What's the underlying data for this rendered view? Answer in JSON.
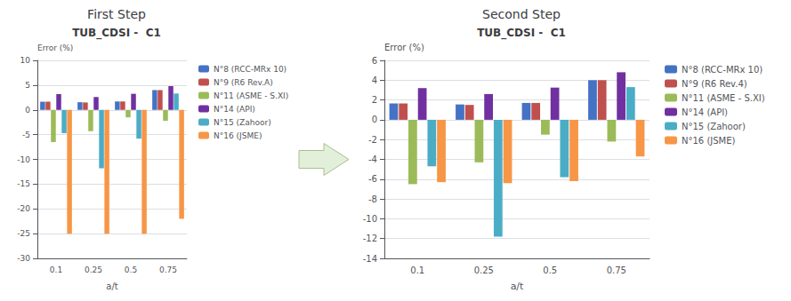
{
  "chart_data": [
    {
      "type": "bar",
      "title": "First Step",
      "annotation": "TUB_CDSI -  C1",
      "ylabel": "Error (%)",
      "xlabel": "a/t",
      "categories": [
        "0.1",
        "0.25",
        "0.5",
        "0.75"
      ],
      "series": [
        {
          "name": "N°8 (RCC-MRx 10)",
          "color": "#4472C4",
          "values": [
            1.65,
            1.55,
            1.7,
            4.0
          ]
        },
        {
          "name": "N°9 (R6 Rev.A)",
          "color": "#C0504D",
          "values": [
            1.65,
            1.5,
            1.7,
            4.0
          ]
        },
        {
          "name": "N°11 (ASME - S.XI)",
          "color": "#9BBB59",
          "values": [
            -6.5,
            -4.3,
            -1.5,
            -2.2
          ]
        },
        {
          "name": "N°14 (API)",
          "color": "#7030A0",
          "values": [
            3.2,
            2.6,
            3.25,
            4.8
          ]
        },
        {
          "name": "N°15 (Zahoor)",
          "color": "#4BACC6",
          "values": [
            -4.7,
            -11.8,
            -5.8,
            3.3
          ]
        },
        {
          "name": "N°16 (JSME)",
          "color": "#F79646",
          "values": [
            -25.0,
            -25.0,
            -25.0,
            -22.0
          ]
        }
      ],
      "ylim": [
        -30,
        10
      ],
      "yticks": [
        -30,
        -25,
        -20,
        -15,
        -10,
        -5,
        0,
        5,
        10
      ],
      "grid": true,
      "legend": "right"
    },
    {
      "type": "bar",
      "title": "Second Step",
      "annotation": "TUB_CDSI -  C1",
      "ylabel": "Error (%)",
      "xlabel": "a/t",
      "categories": [
        "0.1",
        "0.25",
        "0.5",
        "0.75"
      ],
      "series": [
        {
          "name": "N°8 (RCC-MRx 10)",
          "color": "#4472C4",
          "values": [
            1.65,
            1.55,
            1.7,
            4.0
          ]
        },
        {
          "name": "N°9 (R6 Rev.4)",
          "color": "#C0504D",
          "values": [
            1.65,
            1.5,
            1.7,
            4.0
          ]
        },
        {
          "name": "N°11 (ASME - S.XI)",
          "color": "#9BBB59",
          "values": [
            -6.5,
            -4.3,
            -1.5,
            -2.2
          ]
        },
        {
          "name": "N°14 (API)",
          "color": "#7030A0",
          "values": [
            3.2,
            2.6,
            3.25,
            4.8
          ]
        },
        {
          "name": "N°15 (Zahoor)",
          "color": "#4BACC6",
          "values": [
            -4.7,
            -11.8,
            -5.8,
            3.3
          ]
        },
        {
          "name": "N°16 (JSME)",
          "color": "#F79646",
          "values": [
            -6.3,
            -6.4,
            -6.2,
            -3.7
          ]
        }
      ],
      "ylim": [
        -14,
        6
      ],
      "yticks": [
        -14,
        -12,
        -10,
        -8,
        -6,
        -4,
        -2,
        0,
        2,
        4,
        6
      ],
      "grid": true,
      "legend": "right"
    }
  ]
}
